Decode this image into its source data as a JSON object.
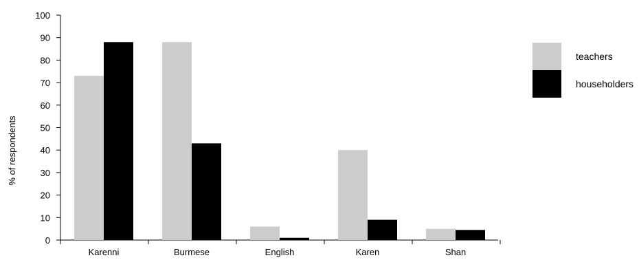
{
  "chart_data": {
    "type": "bar",
    "title": "",
    "xlabel": "",
    "ylabel": "% of respondents",
    "ylim": [
      0,
      100
    ],
    "yticks": [
      0,
      10,
      20,
      30,
      40,
      50,
      60,
      70,
      80,
      90,
      100
    ],
    "categories": [
      "Karenni",
      "Burmese",
      "English",
      "Karen",
      "Shan"
    ],
    "series": [
      {
        "name": "teachers",
        "color": "#cccccc",
        "values": [
          73,
          88,
          6,
          40,
          5
        ]
      },
      {
        "name": "householders",
        "color": "#000000",
        "values": [
          88,
          43,
          1,
          9,
          4.5
        ]
      }
    ],
    "grid": false,
    "legend": {
      "position": "right"
    }
  }
}
